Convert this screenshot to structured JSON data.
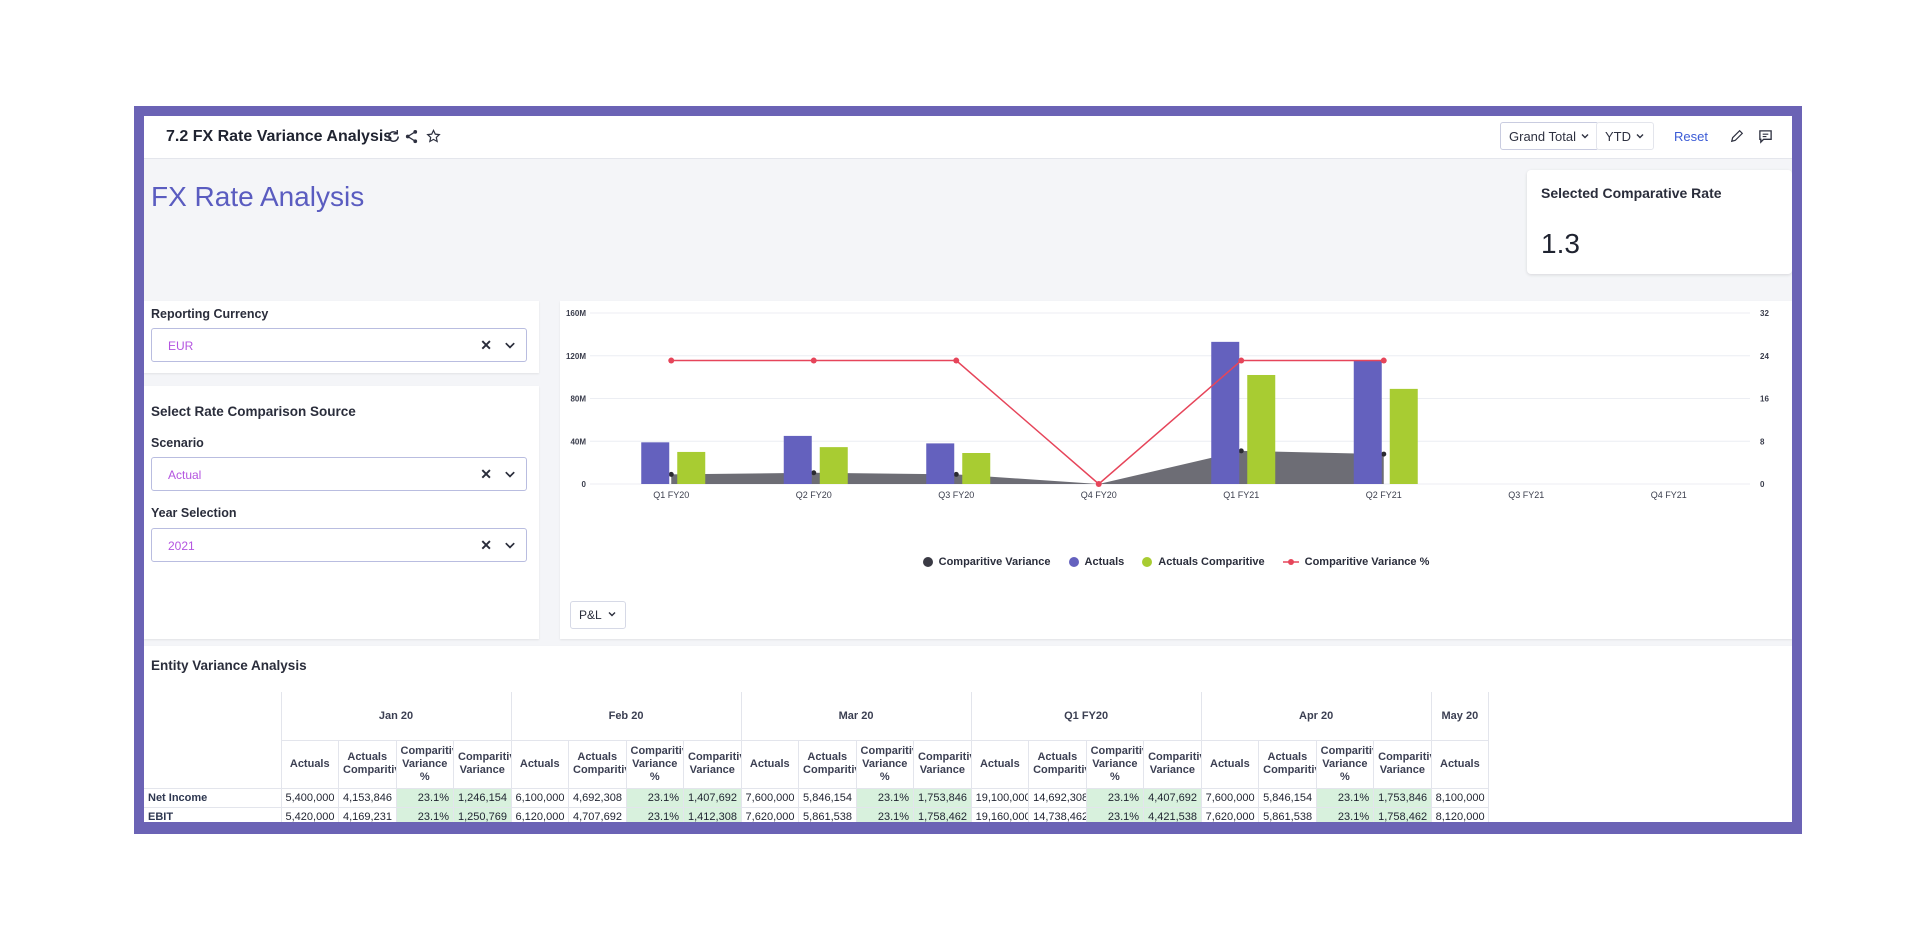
{
  "toolbar": {
    "title": "7.2 FX Rate Variance Analysis",
    "grand_total_label": "Grand Total",
    "ytd_label": "YTD",
    "reset_label": "Reset"
  },
  "page": {
    "title": "FX Rate Analysis"
  },
  "rate_card": {
    "label": "Selected Comparative Rate",
    "value": "1.3"
  },
  "filters": {
    "reporting_currency_label": "Reporting Currency",
    "reporting_currency_value": "EUR",
    "section_title": "Select Rate Comparison Source",
    "scenario_label": "Scenario",
    "scenario_value": "Actual",
    "year_label": "Year Selection",
    "year_value": "2021"
  },
  "chart_data": {
    "type": "bar",
    "categories": [
      "Q1 FY20",
      "Q2 FY20",
      "Q3 FY20",
      "Q4 FY20",
      "Q1 FY21",
      "Q2 FY21",
      "Q3 FY21",
      "Q4 FY21"
    ],
    "left_axis_ticks": [
      "0",
      "40M",
      "80M",
      "120M",
      "160M"
    ],
    "right_axis_ticks": [
      "0",
      "8",
      "16",
      "24",
      "32"
    ],
    "ylim": [
      0,
      160000000
    ],
    "y2lim": [
      0,
      32
    ],
    "series": [
      {
        "name": "Comparitive Variance",
        "type": "area",
        "color": "#3a3a44",
        "values": [
          9000000,
          10500000,
          9000000,
          0,
          31000000,
          28000000,
          null,
          null
        ]
      },
      {
        "name": "Actuals",
        "type": "bar",
        "color": "#6461be",
        "values": [
          39000000,
          45000000,
          38000000,
          0,
          133000000,
          116000000,
          null,
          null
        ]
      },
      {
        "name": "Actuals Comparitive",
        "type": "bar",
        "color": "#a8cc32",
        "values": [
          30000000,
          34500000,
          29000000,
          0,
          102000000,
          89000000,
          null,
          null
        ]
      },
      {
        "name": "Comparitive Variance %",
        "type": "line",
        "color": "#e6455a",
        "values": [
          23.1,
          23.1,
          23.1,
          0,
          23.1,
          23.1,
          null,
          null
        ]
      }
    ],
    "legend_position": "bottom"
  },
  "chart_controls": {
    "pl_label": "P&L"
  },
  "table": {
    "title": "Entity Variance Analysis",
    "groups": [
      "Jan 20",
      "Feb 20",
      "Mar 20",
      "Q1 FY20",
      "Apr 20",
      "May 20"
    ],
    "sub_headers": [
      "Actuals",
      "Actuals Comparitive",
      "Comparitive Variance %",
      "Comparitive Variance"
    ],
    "rows": [
      {
        "label": "Net Income",
        "cells": [
          "5,400,000",
          "4,153,846",
          "23.1%",
          "1,246,154",
          "6,100,000",
          "4,692,308",
          "23.1%",
          "1,407,692",
          "7,600,000",
          "5,846,154",
          "23.1%",
          "1,753,846",
          "19,100,000",
          "14,692,308",
          "23.1%",
          "4,407,692",
          "7,600,000",
          "5,846,154",
          "23.1%",
          "1,753,846",
          "8,100,000"
        ]
      },
      {
        "label": "EBIT",
        "cells": [
          "5,420,000",
          "4,169,231",
          "23.1%",
          "1,250,769",
          "6,120,000",
          "4,707,692",
          "23.1%",
          "1,412,308",
          "7,620,000",
          "5,861,538",
          "23.1%",
          "1,758,462",
          "19,160,000",
          "14,738,462",
          "23.1%",
          "4,421,538",
          "7,620,000",
          "5,861,538",
          "23.1%",
          "1,758,462",
          "8,120,000"
        ]
      }
    ]
  }
}
